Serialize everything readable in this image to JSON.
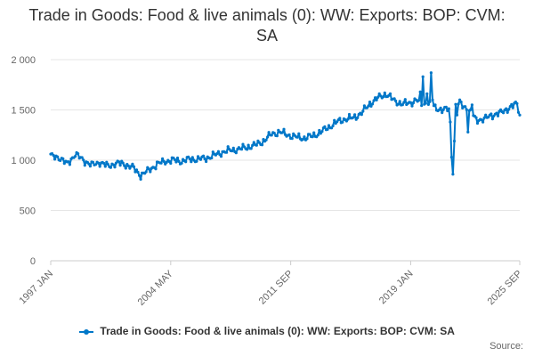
{
  "chart_data": {
    "type": "line",
    "title": "Trade in Goods: Food & live animals (0): WW: Exports: BOP: CVM: SA",
    "xlabel": "",
    "ylabel": "",
    "ylim": [
      0,
      2000
    ],
    "y_ticks": [
      0,
      500,
      1000,
      1500,
      2000
    ],
    "y_tick_labels": [
      "0",
      "500",
      "1 000",
      "1 500",
      "2 000"
    ],
    "x_ticks": [
      "1997 JAN",
      "2004 MAY",
      "2011 SEP",
      "2019 JAN",
      "2025 SEP"
    ],
    "x_tick_index": [
      0,
      88,
      176,
      264,
      344
    ],
    "series": [
      {
        "name": "Trade in Goods: Food & live animals (0): WW: Exports: BOP: CVM: SA",
        "color": "#0077c8",
        "start": "1997 JAN",
        "frequency": "monthly",
        "anchors": [
          [
            0,
            1040
          ],
          [
            6,
            1030
          ],
          [
            12,
            960
          ],
          [
            18,
            1060
          ],
          [
            24,
            1000
          ],
          [
            30,
            950
          ],
          [
            36,
            980
          ],
          [
            42,
            940
          ],
          [
            48,
            970
          ],
          [
            54,
            960
          ],
          [
            60,
            930
          ],
          [
            66,
            850
          ],
          [
            72,
            900
          ],
          [
            78,
            960
          ],
          [
            84,
            990
          ],
          [
            90,
            1000
          ],
          [
            96,
            990
          ],
          [
            102,
            1010
          ],
          [
            108,
            1010
          ],
          [
            114,
            1020
          ],
          [
            120,
            1050
          ],
          [
            126,
            1080
          ],
          [
            132,
            1100
          ],
          [
            138,
            1110
          ],
          [
            144,
            1130
          ],
          [
            150,
            1150
          ],
          [
            156,
            1190
          ],
          [
            162,
            1260
          ],
          [
            168,
            1280
          ],
          [
            174,
            1250
          ],
          [
            180,
            1230
          ],
          [
            186,
            1220
          ],
          [
            192,
            1240
          ],
          [
            198,
            1280
          ],
          [
            204,
            1330
          ],
          [
            210,
            1380
          ],
          [
            216,
            1410
          ],
          [
            222,
            1420
          ],
          [
            228,
            1470
          ],
          [
            234,
            1560
          ],
          [
            240,
            1620
          ],
          [
            246,
            1660
          ],
          [
            252,
            1590
          ],
          [
            258,
            1560
          ],
          [
            264,
            1570
          ],
          [
            268,
            1600
          ],
          [
            272,
            1560
          ],
          [
            278,
            1560
          ],
          [
            282,
            1520
          ],
          [
            288,
            1500
          ],
          [
            294,
            1510
          ],
          [
            300,
            1560
          ],
          [
            306,
            1510
          ],
          [
            312,
            1400
          ],
          [
            318,
            1410
          ],
          [
            324,
            1450
          ],
          [
            330,
            1470
          ],
          [
            336,
            1520
          ],
          [
            342,
            1560
          ],
          [
            344,
            1450
          ]
        ],
        "spikes": [
          [
            271,
            1680
          ],
          [
            273,
            1830
          ],
          [
            276,
            1660
          ],
          [
            279,
            1870
          ],
          [
            280,
            1600
          ],
          [
            293,
            1380
          ],
          [
            294,
            1030
          ],
          [
            295,
            860
          ],
          [
            296,
            1190
          ],
          [
            298,
            1450
          ],
          [
            300,
            1600
          ],
          [
            306,
            1280
          ],
          [
            309,
            1550
          ]
        ]
      }
    ],
    "legend": {
      "label": "Trade in Goods: Food & live animals (0): WW: Exports: BOP: CVM: SA",
      "position": "bottom"
    },
    "source": "Source:"
  }
}
